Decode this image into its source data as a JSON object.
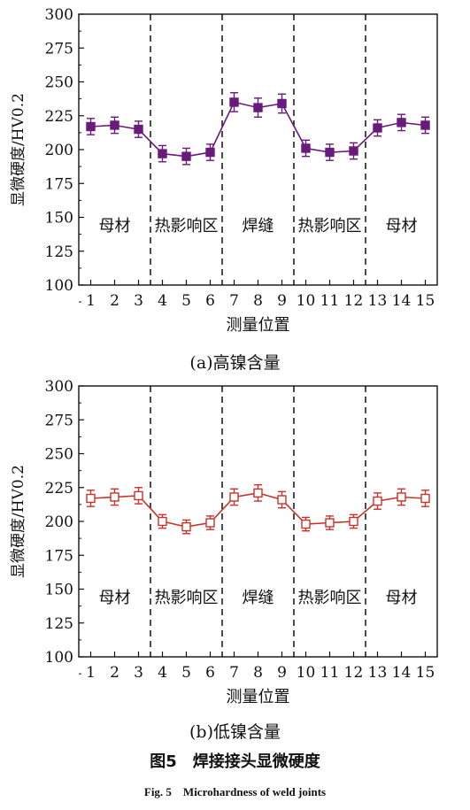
{
  "chart_data": [
    {
      "type": "line",
      "subtitle": "(a)高镍含量",
      "xlabel": "测量位置",
      "ylabel": "显微硬度/HV0.2",
      "ylim": [
        100,
        300
      ],
      "yticks": [
        100,
        125,
        150,
        175,
        200,
        225,
        250,
        275,
        300
      ],
      "x": [
        1,
        2,
        3,
        4,
        5,
        6,
        7,
        8,
        9,
        10,
        11,
        12,
        13,
        14,
        15
      ],
      "series": [
        {
          "values": [
            217,
            218,
            215,
            197,
            195,
            198,
            235,
            231,
            234,
            201,
            198,
            199,
            216,
            220,
            218
          ],
          "errors": [
            6,
            6,
            6,
            6,
            6,
            6,
            7,
            7,
            7,
            6,
            6,
            6,
            6,
            6,
            6
          ],
          "marker": "filled-square",
          "color": "#6a1a7a"
        }
      ],
      "dividers": [
        3.5,
        6.5,
        9.5,
        12.5
      ],
      "regions": [
        {
          "label": "母材",
          "x": 2
        },
        {
          "label": "热影响区",
          "x": 5
        },
        {
          "label": "焊缝",
          "x": 8
        },
        {
          "label": "热影响区",
          "x": 11
        },
        {
          "label": "母材",
          "x": 14
        }
      ]
    },
    {
      "type": "line",
      "subtitle": "(b)低镍含量",
      "xlabel": "测量位置",
      "ylabel": "显微硬度/HV0.2",
      "ylim": [
        100,
        300
      ],
      "yticks": [
        100,
        125,
        150,
        175,
        200,
        225,
        250,
        275,
        300
      ],
      "x": [
        1,
        2,
        3,
        4,
        5,
        6,
        7,
        8,
        9,
        10,
        11,
        12,
        13,
        14,
        15
      ],
      "series": [
        {
          "values": [
            217,
            218,
            219,
            200,
            196,
            199,
            218,
            221,
            216,
            198,
            199,
            200,
            215,
            218,
            217
          ],
          "errors": [
            6,
            6,
            6,
            5,
            5,
            5,
            6,
            6,
            6,
            5,
            5,
            5,
            6,
            6,
            6
          ],
          "marker": "open-square",
          "color": "#c8322a"
        }
      ],
      "dividers": [
        3.5,
        6.5,
        9.5,
        12.5
      ],
      "regions": [
        {
          "label": "母材",
          "x": 2
        },
        {
          "label": "热影响区",
          "x": 5
        },
        {
          "label": "焊缝",
          "x": 8
        },
        {
          "label": "热影响区",
          "x": 11
        },
        {
          "label": "母材",
          "x": 14
        }
      ]
    }
  ],
  "figure": {
    "title": "图5　焊接接头显微硬度",
    "title_en": "Fig. 5　Microhardness of weld joints"
  }
}
